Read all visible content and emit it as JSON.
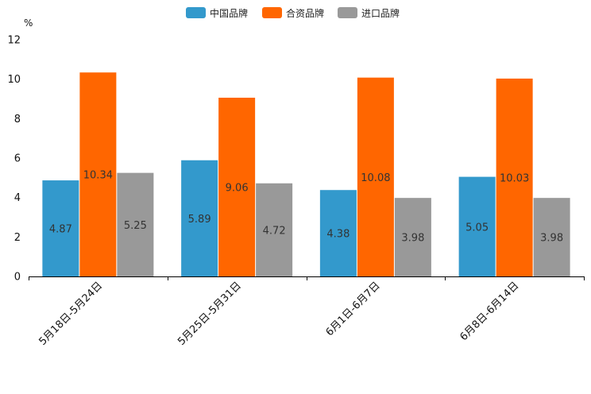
{
  "chart_data": {
    "type": "bar",
    "title": "",
    "xlabel": "",
    "ylabel": "",
    "y_unit": "%",
    "ylim": [
      0,
      12
    ],
    "yticks": [
      0,
      2,
      4,
      6,
      8,
      10,
      12
    ],
    "grid": false,
    "legend_position": "top-center",
    "categories": [
      "5月18日-5月24日",
      "5月25日-5月31日",
      "6月1日-6月7日",
      "6月8日-6月14日"
    ],
    "series": [
      {
        "name": "中国品牌",
        "color": "#3399cc",
        "values": [
          4.87,
          5.89,
          4.38,
          5.05
        ],
        "labels": [
          "4.87",
          "5.89",
          "4.38",
          "5.05"
        ]
      },
      {
        "name": "合资品牌",
        "color": "#ff6600",
        "values": [
          10.34,
          9.06,
          10.08,
          10.03
        ],
        "labels": [
          "10.34",
          "9.06",
          "10.08",
          "10.03"
        ]
      },
      {
        "name": "进口品牌",
        "color": "#999999",
        "values": [
          5.25,
          4.72,
          3.98,
          3.98
        ],
        "labels": [
          "5.25",
          "4.72",
          "3.98",
          "3.98"
        ]
      }
    ]
  }
}
